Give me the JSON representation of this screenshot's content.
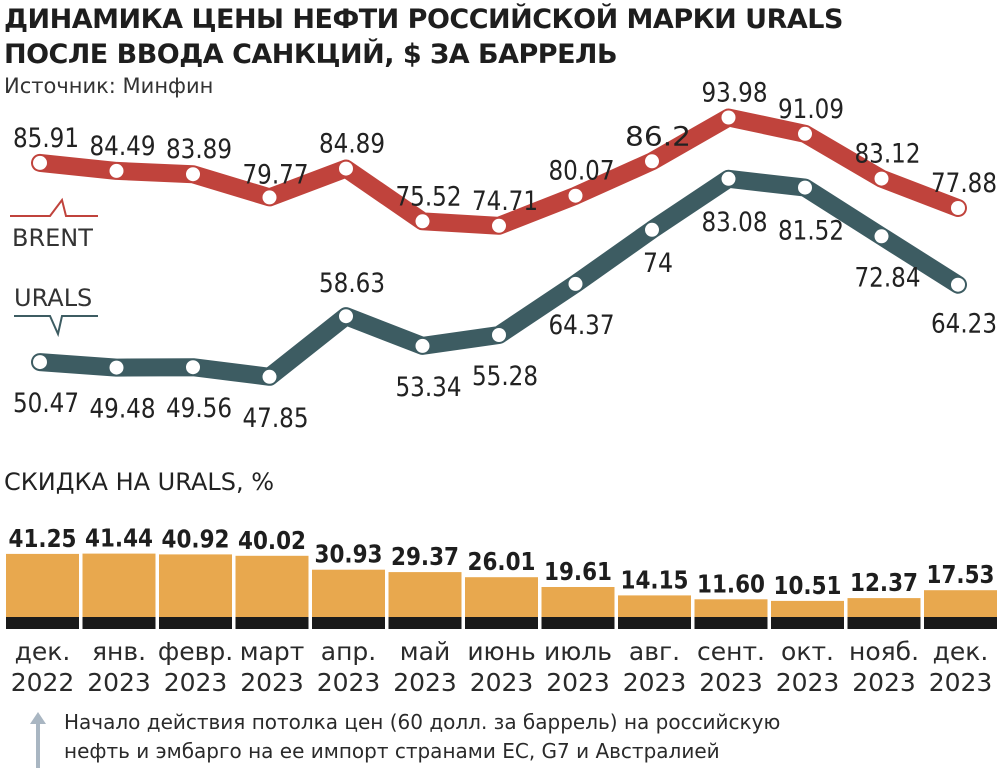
{
  "title_line1": "ДИНАМИКА ЦЕНЫ НЕФТИ РОССИЙСКОЙ МАРКИ URALS",
  "title_line2": "ПОСЛЕ ВВОДА САНКЦИЙ, $ ЗА БАРРЕЛЬ",
  "source": "Источник: Минфин",
  "colors": {
    "brent": "#c0433c",
    "urals": "#3d5c62",
    "bar_fill": "#e8a84e",
    "bar_base": "#1a1a1a",
    "point": "#ffffff"
  },
  "chart_data": [
    {
      "type": "line",
      "categories": [
        "дек. 2022",
        "янв. 2023",
        "февр. 2023",
        "март 2023",
        "апр. 2023",
        "май 2023",
        "июнь 2023",
        "июль 2023",
        "авг. 2023",
        "сент. 2023",
        "окт. 2023",
        "нояб. 2023",
        "дек. 2023"
      ],
      "series": [
        {
          "name": "BRENT",
          "values": [
            85.91,
            84.49,
            83.89,
            79.77,
            84.89,
            75.52,
            74.71,
            80.07,
            86.2,
            93.98,
            91.09,
            83.12,
            77.88
          ],
          "labels": [
            "85.91",
            "84.49",
            "83.89",
            "79.77",
            "84.89",
            "75.52",
            "74.71",
            "80.07",
            "86.2",
            "93.98",
            "91.09",
            "83.12",
            "77.88"
          ]
        },
        {
          "name": "URALS",
          "values": [
            50.47,
            49.48,
            49.56,
            47.85,
            58.63,
            53.34,
            55.28,
            64.37,
            74,
            83.08,
            81.52,
            72.84,
            64.23
          ],
          "labels": [
            "50.47",
            "49.48",
            "49.56",
            "47.85",
            "58.63",
            "53.34",
            "55.28",
            "64.37",
            "74",
            "83.08",
            "81.52",
            "72.84",
            "64.23"
          ]
        }
      ],
      "grid": false
    },
    {
      "type": "bar",
      "title": "СКИДКА НА URALS, %",
      "categories": [
        "дек. 2022",
        "янв. 2023",
        "февр. 2023",
        "март 2023",
        "апр. 2023",
        "май 2023",
        "июнь 2023",
        "июль 2023",
        "авг. 2023",
        "сент. 2023",
        "окт. 2023",
        "нояб. 2023",
        "дек. 2023"
      ],
      "values": [
        41.25,
        41.44,
        40.92,
        40.02,
        30.93,
        29.37,
        26.01,
        19.61,
        14.15,
        11.6,
        10.51,
        12.37,
        17.53
      ],
      "labels": [
        "41.25",
        "41.44",
        "40.92",
        "40.02",
        "30.93",
        "29.37",
        "26.01",
        "19.61",
        "14.15",
        "11.60",
        "10.51",
        "12.37",
        "17.53"
      ]
    }
  ],
  "months": [
    {
      "m": "дек.",
      "y": "2022"
    },
    {
      "m": "янв.",
      "y": "2023"
    },
    {
      "m": "февр.",
      "y": "2023"
    },
    {
      "m": "март",
      "y": "2023"
    },
    {
      "m": "апр.",
      "y": "2023"
    },
    {
      "m": "май",
      "y": "2023"
    },
    {
      "m": "июнь",
      "y": "2023"
    },
    {
      "m": "июль",
      "y": "2023"
    },
    {
      "m": "авг.",
      "y": "2023"
    },
    {
      "m": "сент.",
      "y": "2023"
    },
    {
      "m": "окт.",
      "y": "2023"
    },
    {
      "m": "нояб.",
      "y": "2023"
    },
    {
      "m": "дек.",
      "y": "2023"
    }
  ],
  "footnote_line1": "Начало действия потолка цен (60 долл. за баррель) на российскую",
  "footnote_line2": "нефть и эмбарго на ее импорт странами ЕС, G7 и Австралией",
  "arrow_icon": "up-arrow-icon"
}
